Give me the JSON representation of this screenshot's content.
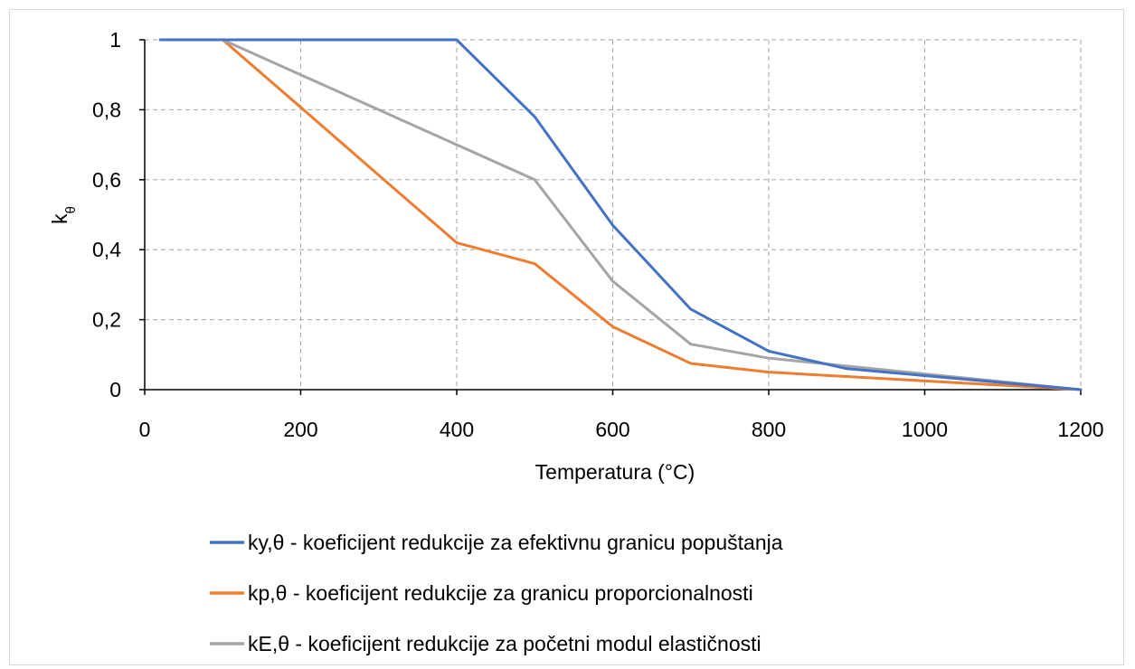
{
  "chart_data": {
    "type": "line",
    "title": "",
    "xlabel": "Temperatura (°C)",
    "ylabel_main": "k",
    "ylabel_sub": "θ",
    "xlim": [
      0,
      1200
    ],
    "ylim": [
      0,
      1
    ],
    "xticks": [
      0,
      200,
      400,
      600,
      800,
      1000,
      1200
    ],
    "yticks": [
      0,
      0.2,
      0.4,
      0.6,
      0.8,
      1
    ],
    "ytick_labels": [
      "0",
      "0,2",
      "0,4",
      "0,6",
      "0,8",
      "1"
    ],
    "grid": true,
    "grid_style": "dashed",
    "legend_position": "bottom",
    "series": [
      {
        "name": "ky,θ - koeficijent redukcije za efektivnu granicu popuštanja",
        "color": "#4472C4",
        "x": [
          20,
          100,
          200,
          300,
          400,
          500,
          600,
          700,
          800,
          900,
          1000,
          1100,
          1200
        ],
        "y": [
          1,
          1,
          1,
          1,
          1,
          0.78,
          0.47,
          0.23,
          0.11,
          0.06,
          0.04,
          0.02,
          0
        ]
      },
      {
        "name": "kp,θ - koeficijent redukcije za granicu proporcionalnosti",
        "color": "#ED7D31",
        "x": [
          20,
          100,
          200,
          300,
          400,
          500,
          600,
          700,
          800,
          900,
          1000,
          1100,
          1200
        ],
        "y": [
          1,
          1,
          0.807,
          0.613,
          0.42,
          0.36,
          0.18,
          0.075,
          0.05,
          0.0375,
          0.025,
          0.0125,
          0
        ]
      },
      {
        "name": "kE,θ - koeficijent redukcije za početni modul elastičnosti",
        "color": "#A5A5A5",
        "x": [
          20,
          100,
          200,
          300,
          400,
          500,
          600,
          700,
          800,
          900,
          1000,
          1100,
          1200
        ],
        "y": [
          1,
          1,
          0.9,
          0.8,
          0.7,
          0.6,
          0.31,
          0.13,
          0.09,
          0.0675,
          0.045,
          0.0225,
          0
        ]
      }
    ]
  }
}
